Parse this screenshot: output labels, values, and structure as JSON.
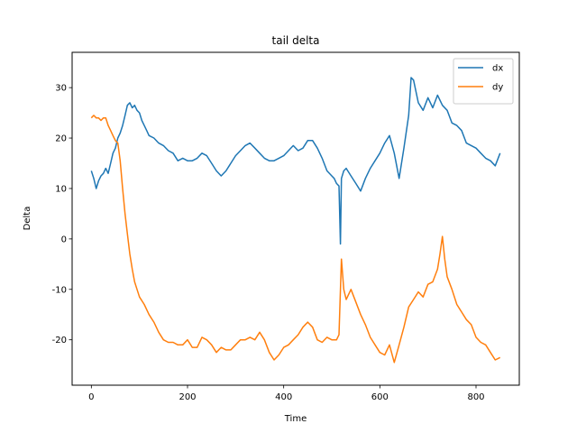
{
  "chart_data": {
    "type": "line",
    "title": "tail delta",
    "xlabel": "Time",
    "ylabel": "Delta",
    "xlim": [
      -40,
      890
    ],
    "ylim": [
      -29,
      37
    ],
    "xticks": [
      0,
      200,
      400,
      600,
      800
    ],
    "yticks": [
      -20,
      -10,
      0,
      10,
      20,
      30
    ],
    "grid": false,
    "legend_position": "top-right",
    "series": [
      {
        "name": "dx",
        "color": "#1f77b4",
        "points": [
          [
            0,
            13.5
          ],
          [
            5,
            12
          ],
          [
            10,
            10
          ],
          [
            15,
            11.5
          ],
          [
            20,
            12.5
          ],
          [
            25,
            13
          ],
          [
            30,
            14
          ],
          [
            35,
            13
          ],
          [
            40,
            15
          ],
          [
            45,
            17
          ],
          [
            50,
            18
          ],
          [
            55,
            20
          ],
          [
            60,
            21
          ],
          [
            65,
            22.5
          ],
          [
            70,
            24.5
          ],
          [
            75,
            26.5
          ],
          [
            80,
            27
          ],
          [
            85,
            26
          ],
          [
            90,
            26.5
          ],
          [
            95,
            25.5
          ],
          [
            100,
            25
          ],
          [
            105,
            23.5
          ],
          [
            110,
            22.5
          ],
          [
            115,
            21.5
          ],
          [
            120,
            20.5
          ],
          [
            130,
            20
          ],
          [
            140,
            19
          ],
          [
            150,
            18.5
          ],
          [
            160,
            17.5
          ],
          [
            170,
            17
          ],
          [
            180,
            15.5
          ],
          [
            190,
            16
          ],
          [
            200,
            15.5
          ],
          [
            210,
            15.5
          ],
          [
            220,
            16
          ],
          [
            230,
            17
          ],
          [
            240,
            16.5
          ],
          [
            250,
            15
          ],
          [
            260,
            13.5
          ],
          [
            270,
            12.5
          ],
          [
            280,
            13.5
          ],
          [
            290,
            15
          ],
          [
            300,
            16.5
          ],
          [
            310,
            17.5
          ],
          [
            320,
            18.5
          ],
          [
            330,
            19
          ],
          [
            340,
            18
          ],
          [
            350,
            17
          ],
          [
            360,
            16
          ],
          [
            370,
            15.5
          ],
          [
            380,
            15.5
          ],
          [
            390,
            16
          ],
          [
            400,
            16.5
          ],
          [
            410,
            17.5
          ],
          [
            420,
            18.5
          ],
          [
            430,
            17.5
          ],
          [
            440,
            18
          ],
          [
            450,
            19.5
          ],
          [
            460,
            19.5
          ],
          [
            470,
            18
          ],
          [
            480,
            16
          ],
          [
            490,
            13.5
          ],
          [
            500,
            12.5
          ],
          [
            505,
            12
          ],
          [
            510,
            11
          ],
          [
            515,
            10.5
          ],
          [
            518,
            -1
          ],
          [
            520,
            12
          ],
          [
            525,
            13.5
          ],
          [
            530,
            14
          ],
          [
            540,
            12.5
          ],
          [
            550,
            11
          ],
          [
            560,
            9.5
          ],
          [
            570,
            12
          ],
          [
            580,
            14
          ],
          [
            590,
            15.5
          ],
          [
            600,
            17
          ],
          [
            610,
            19
          ],
          [
            620,
            20.5
          ],
          [
            630,
            17
          ],
          [
            640,
            12
          ],
          [
            650,
            18
          ],
          [
            660,
            24.5
          ],
          [
            665,
            32
          ],
          [
            670,
            31.5
          ],
          [
            680,
            27
          ],
          [
            690,
            25.5
          ],
          [
            700,
            28
          ],
          [
            710,
            26
          ],
          [
            720,
            28.5
          ],
          [
            730,
            26.5
          ],
          [
            740,
            25.5
          ],
          [
            750,
            23
          ],
          [
            760,
            22.5
          ],
          [
            770,
            21.5
          ],
          [
            780,
            19
          ],
          [
            790,
            18.5
          ],
          [
            800,
            18
          ],
          [
            810,
            17
          ],
          [
            820,
            16
          ],
          [
            830,
            15.5
          ],
          [
            840,
            14.5
          ],
          [
            850,
            17
          ]
        ]
      },
      {
        "name": "dy",
        "color": "#ff7f0e",
        "points": [
          [
            0,
            24
          ],
          [
            5,
            24.5
          ],
          [
            10,
            24
          ],
          [
            15,
            24
          ],
          [
            20,
            23.5
          ],
          [
            25,
            24
          ],
          [
            30,
            24
          ],
          [
            35,
            22.5
          ],
          [
            40,
            21.5
          ],
          [
            45,
            20.5
          ],
          [
            50,
            19.5
          ],
          [
            55,
            19
          ],
          [
            60,
            15.5
          ],
          [
            65,
            10
          ],
          [
            70,
            5
          ],
          [
            75,
            1
          ],
          [
            80,
            -3
          ],
          [
            85,
            -6
          ],
          [
            90,
            -8.5
          ],
          [
            95,
            -10
          ],
          [
            100,
            -11.5
          ],
          [
            110,
            -13
          ],
          [
            120,
            -15
          ],
          [
            130,
            -16.5
          ],
          [
            140,
            -18.5
          ],
          [
            150,
            -20
          ],
          [
            160,
            -20.5
          ],
          [
            170,
            -20.5
          ],
          [
            180,
            -21
          ],
          [
            190,
            -21
          ],
          [
            200,
            -20
          ],
          [
            210,
            -21.5
          ],
          [
            220,
            -21.5
          ],
          [
            230,
            -19.5
          ],
          [
            240,
            -20
          ],
          [
            250,
            -21
          ],
          [
            260,
            -22.5
          ],
          [
            270,
            -21.5
          ],
          [
            280,
            -22
          ],
          [
            290,
            -22
          ],
          [
            300,
            -21
          ],
          [
            310,
            -20
          ],
          [
            320,
            -20
          ],
          [
            330,
            -19.5
          ],
          [
            340,
            -20
          ],
          [
            350,
            -18.5
          ],
          [
            360,
            -20
          ],
          [
            370,
            -22.5
          ],
          [
            380,
            -24
          ],
          [
            390,
            -23
          ],
          [
            400,
            -21.5
          ],
          [
            410,
            -21
          ],
          [
            420,
            -20
          ],
          [
            430,
            -19
          ],
          [
            440,
            -17.5
          ],
          [
            450,
            -16.5
          ],
          [
            460,
            -17.5
          ],
          [
            470,
            -20
          ],
          [
            480,
            -20.5
          ],
          [
            490,
            -19.5
          ],
          [
            500,
            -20
          ],
          [
            510,
            -20
          ],
          [
            515,
            -19
          ],
          [
            520,
            -4
          ],
          [
            525,
            -10
          ],
          [
            530,
            -12
          ],
          [
            540,
            -10
          ],
          [
            550,
            -12.5
          ],
          [
            560,
            -15
          ],
          [
            570,
            -17
          ],
          [
            580,
            -19.5
          ],
          [
            590,
            -21
          ],
          [
            600,
            -22.5
          ],
          [
            610,
            -23
          ],
          [
            620,
            -21
          ],
          [
            630,
            -24.5
          ],
          [
            640,
            -21
          ],
          [
            650,
            -17.5
          ],
          [
            660,
            -13.5
          ],
          [
            670,
            -12
          ],
          [
            680,
            -10.5
          ],
          [
            690,
            -11.5
          ],
          [
            700,
            -9
          ],
          [
            710,
            -8.5
          ],
          [
            720,
            -6
          ],
          [
            725,
            -3
          ],
          [
            730,
            0.5
          ],
          [
            735,
            -4
          ],
          [
            740,
            -7.5
          ],
          [
            750,
            -10
          ],
          [
            760,
            -13
          ],
          [
            770,
            -14.5
          ],
          [
            780,
            -16
          ],
          [
            790,
            -17
          ],
          [
            800,
            -19.5
          ],
          [
            810,
            -20.5
          ],
          [
            820,
            -21
          ],
          [
            830,
            -22.5
          ],
          [
            840,
            -24
          ],
          [
            850,
            -23.5
          ]
        ]
      }
    ]
  }
}
